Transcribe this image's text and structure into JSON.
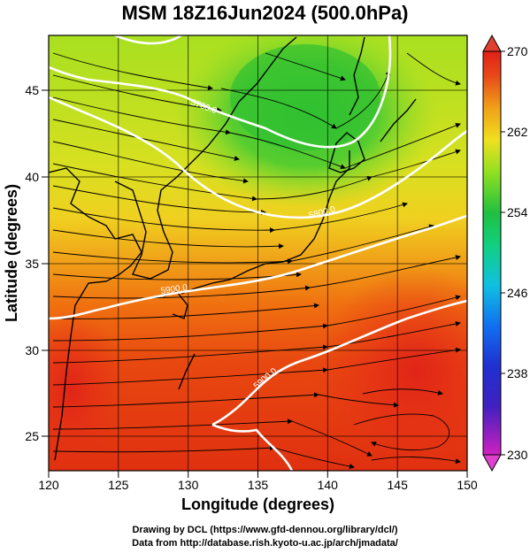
{
  "title": "MSM 18Z16Jun2024 (500.0hPa)",
  "xaxis": {
    "label": "Longitude (degrees)",
    "ticks": [
      "120",
      "125",
      "130",
      "135",
      "140",
      "145",
      "150"
    ],
    "range": [
      120,
      150
    ]
  },
  "yaxis": {
    "label": "Latitude  (degrees)",
    "ticks": [
      "25",
      "30",
      "35",
      "40",
      "45"
    ],
    "range": [
      22.4,
      47.6
    ]
  },
  "colorbar": {
    "ticks": [
      "270",
      "262",
      "254",
      "246",
      "238",
      "230"
    ],
    "range": [
      230,
      270
    ],
    "colors": [
      "#d020c0",
      "#2020c0",
      "#1090f0",
      "#10d0d0",
      "#20c040",
      "#a0e020",
      "#f0e020",
      "#f08010",
      "#e02010",
      "#e82020"
    ]
  },
  "contours": [
    {
      "label": "5700.0"
    },
    {
      "label": "5800.0"
    },
    {
      "label": "5900.0"
    },
    {
      "label": "5900.0"
    }
  ],
  "credits": {
    "line1": "Drawing by DCL (https://www.gfd-dennou.org/library/dcl/)",
    "line2": "Data from http://database.rish.kyoto-u.ac.jp/arch/jmadata/"
  }
}
